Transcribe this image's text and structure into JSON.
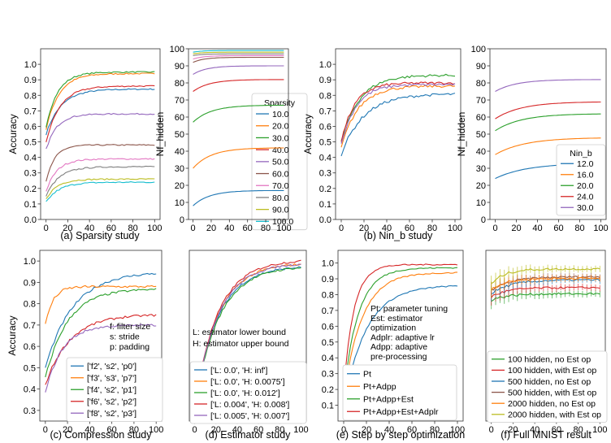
{
  "figure": {
    "colors": [
      "#1f77b4",
      "#ff7f0e",
      "#2ca02c",
      "#d62728",
      "#9467bd",
      "#8c564b",
      "#e377c2",
      "#7f7f7f",
      "#bcbd22",
      "#17becf"
    ]
  },
  "chart_data": [
    {
      "type": "line",
      "caption": "(a) Sparsity study",
      "xlabel": "",
      "ylabel": "Accuracy",
      "xlim": [
        -5,
        105
      ],
      "ylim": [
        0,
        1.1
      ],
      "xticks": [
        0,
        20,
        40,
        60,
        80,
        100
      ],
      "xtick_labels": [
        "0",
        "20",
        "40",
        "60",
        "80",
        "100"
      ],
      "yticks": [
        0,
        0.1,
        0.2,
        0.3,
        0.4,
        0.5,
        0.6,
        0.7,
        0.8,
        0.9,
        1.0
      ],
      "ytick_labels": [
        "0.0",
        "0.1",
        "0.2",
        "0.3",
        "0.4",
        "0.5",
        "0.6",
        "0.7",
        "0.8",
        "0.9",
        "1.0"
      ],
      "noise": 0.006,
      "series": [
        {
          "name": "10.0",
          "color": "#1f77b4",
          "start": 0.55,
          "end": 0.84,
          "tau": 14
        },
        {
          "name": "20.0",
          "color": "#ff7f0e",
          "start": 0.58,
          "end": 0.94,
          "tau": 12
        },
        {
          "name": "30.0",
          "color": "#2ca02c",
          "start": 0.6,
          "end": 0.95,
          "tau": 11
        },
        {
          "name": "40.0",
          "color": "#d62728",
          "start": 0.5,
          "end": 0.86,
          "tau": 13
        },
        {
          "name": "50.0",
          "color": "#9467bd",
          "start": 0.45,
          "end": 0.68,
          "tau": 10
        },
        {
          "name": "60.0",
          "color": "#8c564b",
          "start": 0.24,
          "end": 0.48,
          "tau": 8
        },
        {
          "name": "70.0",
          "color": "#e377c2",
          "start": 0.18,
          "end": 0.39,
          "tau": 10
        },
        {
          "name": "80.0",
          "color": "#7f7f7f",
          "start": 0.15,
          "end": 0.34,
          "tau": 12
        },
        {
          "name": "90.0",
          "color": "#bcbd22",
          "start": 0.13,
          "end": 0.26,
          "tau": 10
        },
        {
          "name": "100.0",
          "color": "#17becf",
          "start": 0.11,
          "end": 0.24,
          "tau": 12
        }
      ],
      "legend": {
        "title": "Sparsity",
        "position": "lower-right"
      }
    },
    {
      "type": "line",
      "caption": "",
      "xlabel": "",
      "ylabel": "Nf_hidden",
      "xlim": [
        -5,
        105
      ],
      "ylim": [
        0,
        100
      ],
      "xticks": [
        0,
        20,
        40,
        60,
        80,
        100
      ],
      "xtick_labels": [
        "0",
        "20",
        "40",
        "60",
        "80",
        "100"
      ],
      "yticks": [
        0,
        10,
        20,
        30,
        40,
        50,
        60,
        70,
        80,
        90,
        100
      ],
      "ytick_labels": [
        "0",
        "10",
        "20",
        "30",
        "40",
        "50",
        "60",
        "70",
        "80",
        "90",
        "100"
      ],
      "noise": 0,
      "series": [
        {
          "name": "10.0",
          "color": "#1f77b4",
          "start": 8,
          "end": 17,
          "tau": 18
        },
        {
          "name": "20.0",
          "color": "#ff7f0e",
          "start": 30,
          "end": 42,
          "tau": 20
        },
        {
          "name": "30.0",
          "color": "#2ca02c",
          "start": 57,
          "end": 67,
          "tau": 20
        },
        {
          "name": "40.0",
          "color": "#d62728",
          "start": 75,
          "end": 82,
          "tau": 18
        },
        {
          "name": "50.0",
          "color": "#9467bd",
          "start": 85,
          "end": 90,
          "tau": 15
        },
        {
          "name": "60.0",
          "color": "#8c564b",
          "start": 92,
          "end": 95,
          "tau": 12
        },
        {
          "name": "70.0",
          "color": "#e377c2",
          "start": 94,
          "end": 96,
          "tau": 12
        },
        {
          "name": "80.0",
          "color": "#7f7f7f",
          "start": 96,
          "end": 97,
          "tau": 10
        },
        {
          "name": "90.0",
          "color": "#bcbd22",
          "start": 97,
          "end": 98,
          "tau": 10
        },
        {
          "name": "100.0",
          "color": "#17becf",
          "start": 98,
          "end": 99,
          "tau": 10
        }
      ],
      "legend": {
        "title": "",
        "position": "none"
      }
    },
    {
      "type": "line",
      "caption": "(b) Nin_b study",
      "xlabel": "",
      "ylabel": "Accuracy",
      "xlim": [
        -5,
        105
      ],
      "ylim": [
        0,
        1.1
      ],
      "xticks": [
        0,
        20,
        40,
        60,
        80,
        100
      ],
      "xtick_labels": [
        "0",
        "20",
        "40",
        "60",
        "80",
        "100"
      ],
      "yticks": [
        0,
        0.1,
        0.2,
        0.3,
        0.4,
        0.5,
        0.6,
        0.7,
        0.8,
        0.9,
        1.0
      ],
      "ytick_labels": [
        "0.0",
        "0.1",
        "0.2",
        "0.3",
        "0.4",
        "0.5",
        "0.6",
        "0.7",
        "0.8",
        "0.9",
        "1.0"
      ],
      "noise": 0.012,
      "series": [
        {
          "name": "12.0",
          "color": "#1f77b4",
          "start": 0.42,
          "end": 0.81,
          "tau": 20
        },
        {
          "name": "16.0",
          "color": "#ff7f0e",
          "start": 0.46,
          "end": 0.86,
          "tau": 15
        },
        {
          "name": "20.0",
          "color": "#2ca02c",
          "start": 0.5,
          "end": 0.93,
          "tau": 16
        },
        {
          "name": "24.0",
          "color": "#d62728",
          "start": 0.5,
          "end": 0.88,
          "tau": 12
        },
        {
          "name": "30.0",
          "color": "#9467bd",
          "start": 0.48,
          "end": 0.87,
          "tau": 13
        }
      ],
      "legend": {
        "title": "",
        "position": "none"
      }
    },
    {
      "type": "line",
      "caption": "",
      "xlabel": "",
      "ylabel": "Nf_hidden",
      "xlim": [
        -5,
        105
      ],
      "ylim": [
        0,
        100
      ],
      "xticks": [
        0,
        20,
        40,
        60,
        80,
        100
      ],
      "xtick_labels": [
        "0",
        "20",
        "40",
        "60",
        "80",
        "100"
      ],
      "yticks": [
        0,
        10,
        20,
        30,
        40,
        50,
        60,
        70,
        80,
        90,
        100
      ],
      "ytick_labels": [
        "0",
        "10",
        "20",
        "30",
        "40",
        "50",
        "60",
        "70",
        "80",
        "90",
        "100"
      ],
      "noise": 0,
      "series": [
        {
          "name": "12.0",
          "color": "#1f77b4",
          "start": 24,
          "end": 33,
          "tau": 30
        },
        {
          "name": "16.0",
          "color": "#ff7f0e",
          "start": 38,
          "end": 48,
          "tau": 28
        },
        {
          "name": "20.0",
          "color": "#2ca02c",
          "start": 52,
          "end": 62,
          "tau": 25
        },
        {
          "name": "24.0",
          "color": "#d62728",
          "start": 59,
          "end": 69,
          "tau": 25
        },
        {
          "name": "30.0",
          "color": "#9467bd",
          "start": 75,
          "end": 82,
          "tau": 20
        }
      ],
      "legend": {
        "title": "Nin_b",
        "position": "lower-right"
      }
    },
    {
      "type": "line",
      "caption": "(c) Compression study",
      "xlabel": "",
      "ylabel": "Accuracy",
      "xlim": [
        -5,
        105
      ],
      "ylim": [
        0.25,
        1.05
      ],
      "xticks": [
        0,
        20,
        40,
        60,
        80,
        100
      ],
      "xtick_labels": [
        "0",
        "20",
        "40",
        "60",
        "80",
        "100"
      ],
      "yticks": [
        0.3,
        0.4,
        0.5,
        0.6,
        0.7,
        0.8,
        0.9,
        1.0
      ],
      "ytick_labels": [
        "0.3",
        "0.4",
        "0.5",
        "0.6",
        "0.7",
        "0.8",
        "0.9",
        "1.0"
      ],
      "noise": 0.008,
      "series": [
        {
          "name": "['f2', 's2', 'p0']",
          "color": "#1f77b4",
          "start": 0.5,
          "end": 0.95,
          "tau": 25
        },
        {
          "name": "['f3', 's3', 'p7']",
          "color": "#ff7f0e",
          "start": 0.7,
          "end": 0.88,
          "tau": 7
        },
        {
          "name": "['f4', 's2', 'p1']",
          "color": "#2ca02c",
          "start": 0.45,
          "end": 0.87,
          "tau": 20
        },
        {
          "name": "['f6', 's2', 'p2']",
          "color": "#d62728",
          "start": 0.42,
          "end": 0.75,
          "tau": 22
        },
        {
          "name": "['f8', 's2', 'p3']",
          "color": "#9467bd",
          "start": 0.38,
          "end": 0.7,
          "tau": 15
        }
      ],
      "legend": {
        "title": "",
        "position": "lower-right"
      }
    },
    {
      "type": "line",
      "caption": "(d) Estimator study",
      "xlabel": "",
      "ylabel": "",
      "xlim": [
        -5,
        105
      ],
      "ylim": [
        0.45,
        1.0
      ],
      "xticks": [
        0,
        20,
        40,
        60,
        80,
        100
      ],
      "xtick_labels": [
        "0",
        "20",
        "40",
        "60",
        "80",
        "100"
      ],
      "yticks": [],
      "ytick_labels": [],
      "noise": 0.005,
      "series": [
        {
          "name": "['L: 0.0', 'H: inf']",
          "color": "#1f77b4",
          "start": 0.5,
          "end": 0.95,
          "tau": 22
        },
        {
          "name": "['L: 0.0', 'H: 0.0075']",
          "color": "#ff7f0e",
          "start": 0.5,
          "end": 0.96,
          "tau": 22
        },
        {
          "name": "['L: 0.0', 'H: 0.012']",
          "color": "#2ca02c",
          "start": 0.5,
          "end": 0.95,
          "tau": 23
        },
        {
          "name": "['L: 0.004', 'H: 0.008']",
          "color": "#d62728",
          "start": 0.5,
          "end": 0.97,
          "tau": 22
        },
        {
          "name": "['L: 0.005', 'H: 0.007']",
          "color": "#9467bd",
          "start": 0.5,
          "end": 0.96,
          "tau": 22
        }
      ],
      "legend": {
        "title": "",
        "position": "lower-right"
      }
    },
    {
      "type": "line",
      "caption": "(e) Step by step optimization",
      "xlabel": "",
      "ylabel": "",
      "xlim": [
        -5,
        105
      ],
      "ylim": [
        0,
        1.08
      ],
      "xticks": [
        0,
        20,
        40,
        60,
        80,
        100
      ],
      "xtick_labels": [
        "0",
        "20",
        "40",
        "60",
        "80",
        "100"
      ],
      "yticks": [
        0.1,
        0.2,
        0.3,
        0.4,
        0.5,
        0.6,
        0.7,
        0.8,
        0.9,
        1.0
      ],
      "ytick_labels": [
        "0.1",
        "0.2",
        "0.3",
        "0.4",
        "0.5",
        "0.6",
        "0.7",
        "0.8",
        "0.9",
        "1.0"
      ],
      "noise": 0.006,
      "series": [
        {
          "name": "Pt",
          "color": "#1f77b4",
          "start": 0.1,
          "end": 0.86,
          "tau": 20
        },
        {
          "name": "Pt+Adpp",
          "color": "#ff7f0e",
          "start": 0.15,
          "end": 0.94,
          "tau": 16
        },
        {
          "name": "Pt+Adpp+Est",
          "color": "#2ca02c",
          "start": 0.18,
          "end": 0.97,
          "tau": 13
        },
        {
          "name": "Pt+Adpp+Est+Adplr",
          "color": "#d62728",
          "start": 0.2,
          "end": 0.99,
          "tau": 9
        }
      ],
      "legend": {
        "title": "",
        "position": "lower-right"
      }
    },
    {
      "type": "line",
      "caption": "(f) Full MNIST result",
      "xlabel": "",
      "ylabel": "",
      "xlim": [
        -5,
        105
      ],
      "ylim": [
        0,
        1.1
      ],
      "xticks": [
        0,
        20,
        40,
        60,
        80,
        100
      ],
      "xtick_labels": [
        "0",
        "20",
        "40",
        "60",
        "80",
        "100"
      ],
      "yticks": [],
      "ytick_labels": [],
      "noise": 0.01,
      "series": [
        {
          "name": "100 hidden, no Est op",
          "color": "#2ca02c",
          "start": 0.78,
          "end": 0.82,
          "tau": 15
        },
        {
          "name": "100 hidden, with Est op",
          "color": "#d62728",
          "start": 0.8,
          "end": 0.86,
          "tau": 15
        },
        {
          "name": "500 hidden, no Est op",
          "color": "#1f77b4",
          "start": 0.82,
          "end": 0.91,
          "tau": 18
        },
        {
          "name": "500 hidden, with Est op",
          "color": "#8c564b",
          "start": 0.84,
          "end": 0.93,
          "tau": 18
        },
        {
          "name": "2000 hidden, no Est op",
          "color": "#ff7f0e",
          "start": 0.85,
          "end": 0.92,
          "tau": 15
        },
        {
          "name": "2000 hidden, with Est op",
          "color": "#bcbd22",
          "start": 0.88,
          "end": 0.98,
          "tau": 12
        }
      ],
      "legend": {
        "title": "",
        "position": "lower-right"
      }
    }
  ],
  "annotations": {
    "c": [
      "f: filter size",
      "s: stride",
      "p: padding"
    ],
    "d": [
      "L: estimator lower bound",
      "H: estimator upper bound"
    ],
    "e": [
      "Pt: parameter tuning",
      "Est: estimator",
      "optimization",
      "Adplr: adaptive lr",
      "Adpp: adaptive",
      "pre-processing"
    ]
  }
}
